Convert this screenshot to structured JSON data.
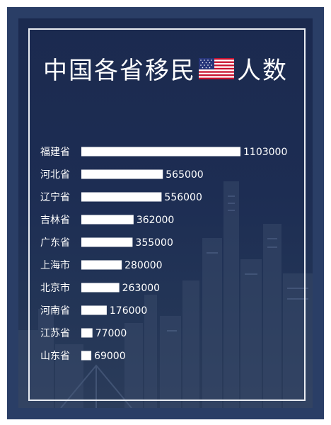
{
  "title": {
    "left": "中国各省移民",
    "right": "人数",
    "flag_icon": "us-flag-icon"
  },
  "colors": {
    "frame": "#2a3e66",
    "panel": "#1b2a4f",
    "bar": "#ffffff",
    "text": "#ffffff"
  },
  "chart_data": {
    "type": "bar",
    "orientation": "horizontal",
    "categories": [
      "福建省",
      "河北省",
      "辽宁省",
      "吉林省",
      "广东省",
      "上海市",
      "北京市",
      "河南省",
      "江苏省",
      "山东省"
    ],
    "values": [
      1103000,
      565000,
      556000,
      362000,
      355000,
      280000,
      263000,
      176000,
      77000,
      69000
    ],
    "value_labels": [
      "1103000",
      "565000",
      "556000",
      "362000",
      "355000",
      "280000",
      "263000",
      "176000",
      "77000",
      "69000"
    ],
    "title": "",
    "xlabel": "",
    "ylabel": "",
    "xlim": [
      0,
      1103000
    ],
    "grid": false,
    "legend": "none"
  }
}
